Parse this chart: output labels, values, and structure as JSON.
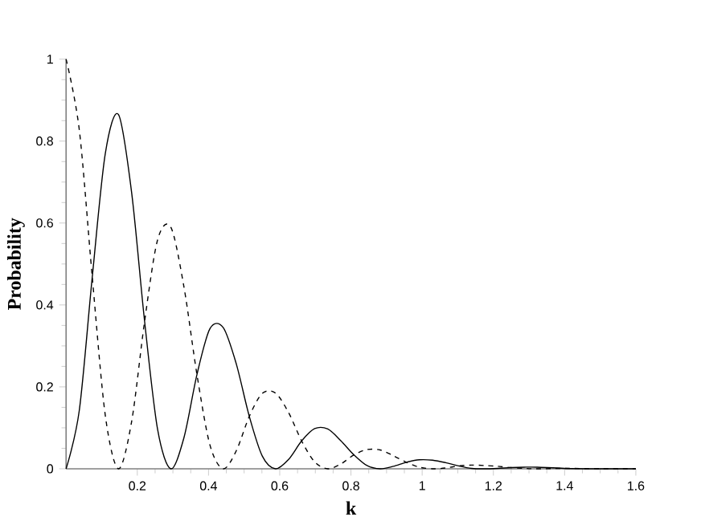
{
  "chart_data": {
    "type": "line",
    "xlabel": "k",
    "ylabel": "Probability",
    "x": [
      0,
      0.037,
      0.0735,
      0.11,
      0.147,
      0.184,
      0.2205,
      0.257,
      0.294,
      0.331,
      0.3675,
      0.404,
      0.441,
      0.478,
      0.5145,
      0.551,
      0.588,
      0.625,
      0.6615,
      0.698,
      0.735,
      0.772,
      0.8085,
      0.845,
      0.882,
      0.919,
      0.9555,
      0.992,
      1.029,
      1.066,
      1.1025,
      1.139,
      1.176,
      1.2125,
      1.249,
      1.286,
      1.323,
      1.4,
      1.5,
      1.6
    ],
    "series": [
      {
        "color": "#000000",
        "line_style": "dashed",
        "values": [
          1,
          0.828,
          0.468,
          0.131,
          0,
          0.115,
          0.36,
          0.559,
          0.59,
          0.444,
          0.23,
          0.058,
          0,
          0.044,
          0.128,
          0.184,
          0.185,
          0.137,
          0.068,
          0.017,
          0,
          0.012,
          0.034,
          0.047,
          0.046,
          0.032,
          0.016,
          0.004,
          0,
          0.002,
          0.007,
          0.009,
          0.008,
          0.006,
          0.003,
          0.001,
          0,
          0.001,
          0,
          0
        ]
      },
      {
        "color": "#000000",
        "line_style": "solid",
        "values": [
          0,
          0.142,
          0.468,
          0.769,
          0.865,
          0.675,
          0.36,
          0.096,
          0,
          0.076,
          0.23,
          0.342,
          0.345,
          0.256,
          0.128,
          0.031,
          0,
          0.023,
          0.068,
          0.098,
          0.097,
          0.068,
          0.034,
          0.008,
          0,
          0.006,
          0.016,
          0.022,
          0.021,
          0.015,
          0.007,
          0.001,
          0,
          0.001,
          0.003,
          0.004,
          0.004,
          0.001,
          0,
          0
        ]
      }
    ],
    "xlim": [
      0,
      1.6
    ],
    "ylim": [
      0,
      1
    ],
    "xticks": [
      0.2,
      0.4,
      0.6,
      0.8,
      1,
      1.2,
      1.4,
      1.6
    ],
    "yticks": [
      0,
      0.2,
      0.4,
      0.6,
      0.8,
      1
    ],
    "grid": false,
    "marker": "none"
  }
}
